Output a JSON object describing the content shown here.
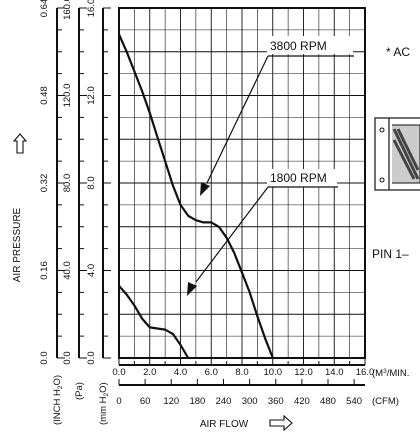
{
  "chart_data": {
    "type": "line",
    "xlabel": "AIR FLOW",
    "ylabel": "AIR PRESSURE",
    "x_unit_primary": "(M3/MIN.)",
    "x_unit_secondary": "(CFM)",
    "x_primary_range": [
      0,
      16
    ],
    "x_primary_ticks": [
      "0.0",
      "2.0",
      "4.0",
      "6.0",
      "8.0",
      "10.0",
      "12.0",
      "14.0",
      "16.0"
    ],
    "x_secondary_ticks": [
      "0",
      "60",
      "120",
      "180",
      "240",
      "300",
      "360",
      "420",
      "480",
      "540"
    ],
    "y_unit_mmh2o": "(mm H2O)",
    "y_unit_pa": "(Pa)",
    "y_unit_inch": "(INCH H2O)",
    "y_mmh2o_range": [
      0,
      16
    ],
    "y_ticks_mmh2o": [
      "0.0",
      "4.0",
      "8.0",
      "12.0",
      "16.0"
    ],
    "y_ticks_pa": [
      "0.0",
      "40.0",
      "80.0",
      "120.0",
      "160.0"
    ],
    "y_ticks_inch": [
      "0.0",
      "0.16",
      "0.32",
      "0.48",
      "0.64"
    ],
    "grid": true,
    "series": [
      {
        "name": "3800 RPM",
        "x": [
          0.0,
          0.5,
          1.0,
          1.5,
          2.0,
          2.5,
          3.0,
          3.5,
          4.0,
          4.5,
          5.0,
          5.5,
          6.0,
          6.5,
          7.0,
          7.5,
          8.0,
          8.5,
          9.0,
          9.5,
          10.0
        ],
        "y": [
          14.8,
          14.0,
          13.1,
          12.2,
          11.2,
          10.1,
          9.0,
          7.9,
          7.0,
          6.5,
          6.3,
          6.2,
          6.2,
          6.0,
          5.5,
          4.8,
          3.9,
          3.0,
          1.9,
          0.9,
          0.0
        ]
      },
      {
        "name": "1800 RPM",
        "x": [
          0.0,
          0.5,
          1.0,
          1.5,
          2.0,
          2.5,
          3.0,
          3.5,
          4.0,
          4.5
        ],
        "y": [
          3.3,
          2.9,
          2.4,
          1.8,
          1.4,
          1.35,
          1.3,
          1.1,
          0.6,
          0.0
        ]
      }
    ]
  },
  "side_text": {
    "ac_note": "* AC",
    "pin_label": "PIN 1–"
  }
}
